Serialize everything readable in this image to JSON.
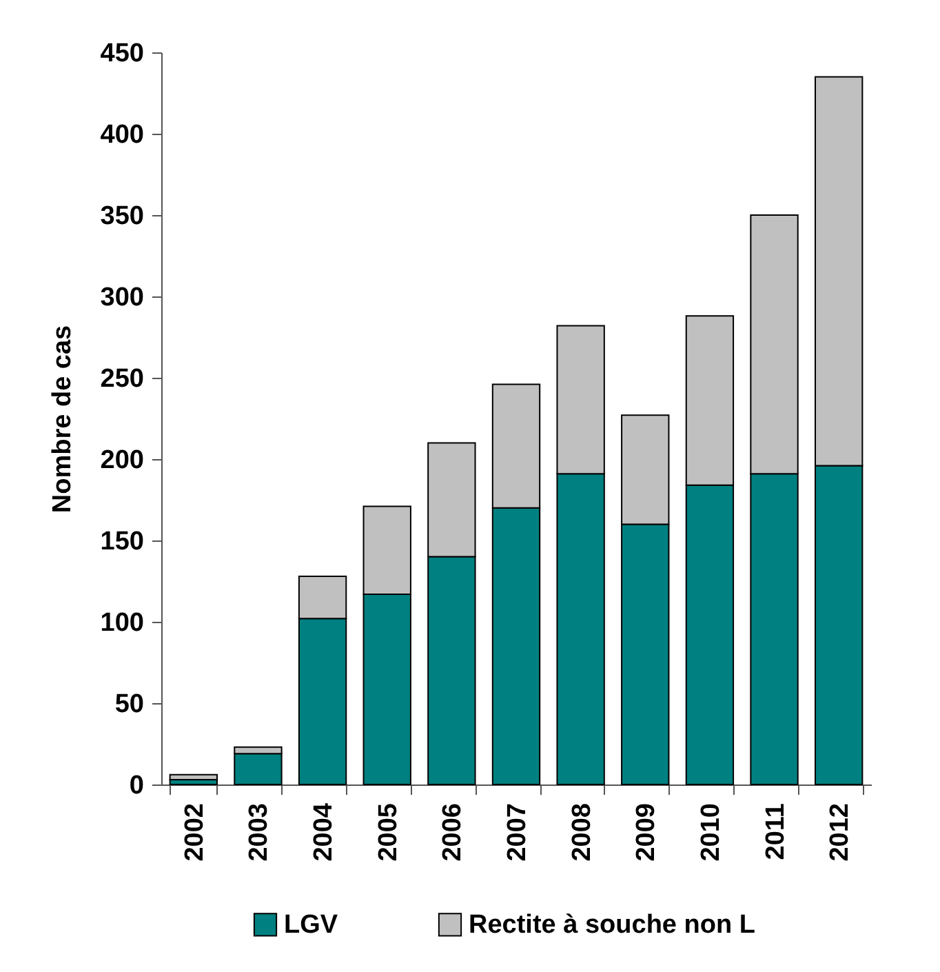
{
  "chart_data": {
    "type": "bar",
    "stacked": true,
    "categories": [
      "2002",
      "2003",
      "2004",
      "2005",
      "2006",
      "2007",
      "2008",
      "2009",
      "2010",
      "2011",
      "2012"
    ],
    "series": [
      {
        "name": "LGV",
        "color": "#008080",
        "values": [
          3,
          19,
          102,
          117,
          140,
          170,
          191,
          160,
          184,
          191,
          196
        ]
      },
      {
        "name": "Rectite à souche non L",
        "color": "#c0c0c0",
        "values": [
          3,
          4,
          26,
          54,
          70,
          76,
          91,
          67,
          104,
          159,
          239
        ]
      }
    ],
    "ylabel": "Nombre de cas",
    "ylim": [
      0,
      450
    ],
    "yticks": [
      0,
      50,
      100,
      150,
      200,
      250,
      300,
      350,
      400,
      450
    ],
    "grid": false,
    "legend": "bottom"
  }
}
